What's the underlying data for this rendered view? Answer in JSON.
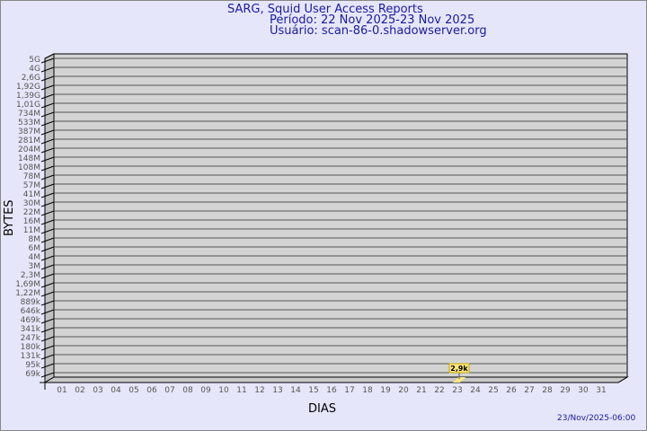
{
  "header": {
    "title": "SARG, Squid User Access Reports",
    "period": "Período: 22 Nov 2025-23 Nov 2025",
    "user": "Usuário: scan-86-0.shadowserver.org"
  },
  "footer": {
    "timestamp": "23/Nov/2025-06:00"
  },
  "chart_data": {
    "type": "bar",
    "xlabel": "DIAS",
    "ylabel": "BYTES",
    "y_scale": "log",
    "y_ticks": [
      "69k",
      "95k",
      "131k",
      "180k",
      "247k",
      "341k",
      "469k",
      "646k",
      "889k",
      "1,22M",
      "1,69M",
      "2,3M",
      "3M",
      "4M",
      "6M",
      "8M",
      "11M",
      "16M",
      "22M",
      "30M",
      "41M",
      "57M",
      "78M",
      "108M",
      "148M",
      "204M",
      "281M",
      "387M",
      "533M",
      "734M",
      "1,01G",
      "1,39G",
      "1,92G",
      "2,6G",
      "4G",
      "5G"
    ],
    "categories": [
      "01",
      "02",
      "03",
      "04",
      "05",
      "06",
      "07",
      "08",
      "09",
      "10",
      "11",
      "12",
      "13",
      "14",
      "15",
      "16",
      "17",
      "18",
      "19",
      "20",
      "21",
      "22",
      "23",
      "24",
      "25",
      "26",
      "27",
      "28",
      "29",
      "30",
      "31"
    ],
    "bars": [
      {
        "day": "23",
        "value": 2900,
        "label": "2,9k"
      }
    ],
    "grid": true,
    "colors": {
      "wall": "#d3d3d3",
      "bar": "#ffe680",
      "text": "#1a1aa0"
    }
  }
}
